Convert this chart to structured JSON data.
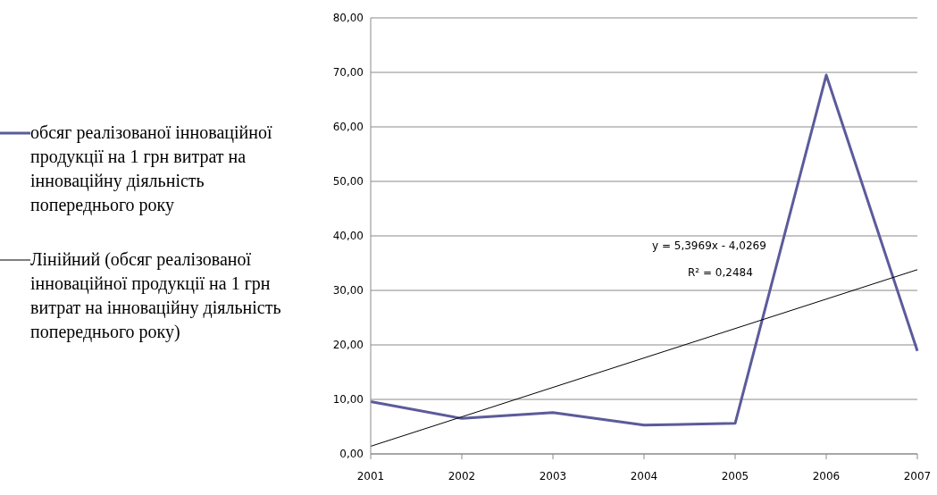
{
  "chart_data": {
    "type": "line",
    "categories": [
      "2001",
      "2002",
      "2003",
      "2004",
      "2005",
      "2006",
      "2007"
    ],
    "series": [
      {
        "name": "обсяг реалізованої інноваційної продукції на 1 грн витрат на інноваційну діяльність попереднього року",
        "color": "#5b5b9b",
        "values": [
          9.6,
          6.5,
          7.6,
          5.3,
          5.6,
          69.5,
          18.9
        ]
      },
      {
        "name": "Лінійний (обсяг реалізованої інноваційної продукції на 1 грн витрат на інноваційну діяльність попереднього року)",
        "color": "#000000",
        "values": [
          1.4,
          6.8,
          12.2,
          17.6,
          23.0,
          28.4,
          33.8
        ]
      }
    ],
    "ylim": [
      0,
      80
    ],
    "yticks": [
      {
        "value": 0,
        "label": "0,00"
      },
      {
        "value": 10,
        "label": "10,00"
      },
      {
        "value": 20,
        "label": "20,00"
      },
      {
        "value": 30,
        "label": "30,00"
      },
      {
        "value": 40,
        "label": "40,00"
      },
      {
        "value": 50,
        "label": "50,00"
      },
      {
        "value": 60,
        "label": "60,00"
      },
      {
        "value": 70,
        "label": "70,00"
      },
      {
        "value": 80,
        "label": "80,00"
      }
    ],
    "annotations": [
      "y = 5,3969x - 4,0269",
      "R² = 0,2484"
    ],
    "grid": "y",
    "legend": "left",
    "marker": "none",
    "line_style": "solid"
  }
}
